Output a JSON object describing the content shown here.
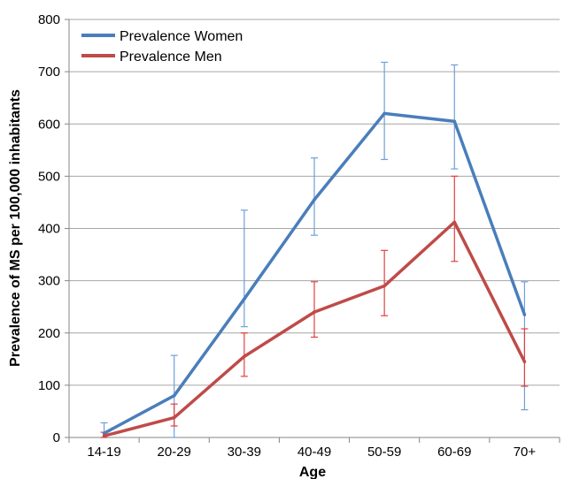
{
  "chart_data": {
    "type": "line",
    "title": "",
    "xlabel": "Age",
    "ylabel": "Prevalence of MS per 100,000 inhabitants",
    "categories": [
      "14-19",
      "20-29",
      "30-39",
      "40-49",
      "50-59",
      "60-69",
      "70+"
    ],
    "ylim": [
      0,
      800
    ],
    "yticks": [
      0,
      100,
      200,
      300,
      400,
      500,
      600,
      700,
      800
    ],
    "grid": "horizontal",
    "legend_position": "top-left",
    "series": [
      {
        "name": "Prevalence Women",
        "color": "#4a7ebb",
        "values": [
          8,
          80,
          265,
          455,
          620,
          605,
          235
        ],
        "error_low": [
          0,
          0,
          212,
          387,
          532,
          514,
          53
        ],
        "error_high": [
          28,
          157,
          435,
          535,
          718,
          713,
          298
        ]
      },
      {
        "name": "Prevalence Men",
        "color": "#be4b48",
        "values": [
          3,
          38,
          155,
          240,
          290,
          412,
          145
        ],
        "error_low": [
          0,
          22,
          117,
          192,
          233,
          337,
          98
        ],
        "error_high": [
          10,
          64,
          200,
          298,
          358,
          500,
          208
        ]
      }
    ]
  }
}
